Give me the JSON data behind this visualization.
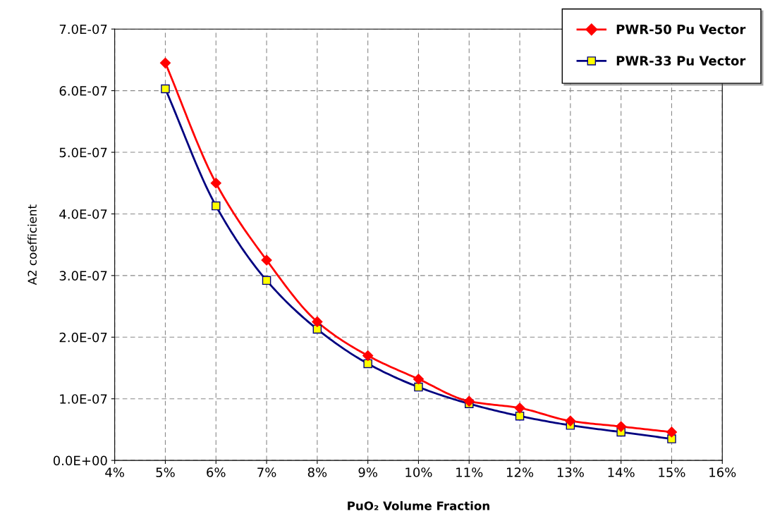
{
  "chart_data": {
    "type": "line",
    "xlabel": "PuO₂ Volume Fraction",
    "ylabel": "A2 coefficient",
    "x": [
      5,
      6,
      7,
      8,
      9,
      10,
      11,
      12,
      13,
      14,
      15
    ],
    "series": [
      {
        "name": "PWR-50 Pu Vector",
        "color": "#ff0000",
        "marker": "diamond",
        "values": [
          6.45e-07,
          4.5e-07,
          3.25e-07,
          2.25e-07,
          1.7e-07,
          1.32e-07,
          9.6e-08,
          8.5e-08,
          6.4e-08,
          5.5e-08,
          4.6e-08
        ]
      },
      {
        "name": "PWR-33 Pu Vector",
        "color": "#000080",
        "marker": "square",
        "values": [
          6.03e-07,
          4.13e-07,
          2.92e-07,
          2.13e-07,
          1.57e-07,
          1.19e-07,
          9.2e-08,
          7.2e-08,
          5.7e-08,
          4.6e-08,
          3.5e-08
        ]
      }
    ],
    "xlim": [
      4,
      16
    ],
    "xticks": [
      {
        "value": 4,
        "label": "4%"
      },
      {
        "value": 5,
        "label": "5%"
      },
      {
        "value": 6,
        "label": "6%"
      },
      {
        "value": 7,
        "label": "7%"
      },
      {
        "value": 8,
        "label": "8%"
      },
      {
        "value": 9,
        "label": "9%"
      },
      {
        "value": 10,
        "label": "10%"
      },
      {
        "value": 11,
        "label": "11%"
      },
      {
        "value": 12,
        "label": "12%"
      },
      {
        "value": 13,
        "label": "13%"
      },
      {
        "value": 14,
        "label": "14%"
      },
      {
        "value": 15,
        "label": "15%"
      },
      {
        "value": 16,
        "label": "16%"
      }
    ],
    "ylim": [
      0,
      7e-07
    ],
    "yticks": [
      {
        "value": 0,
        "label": "0.0E+00"
      },
      {
        "value": 1e-07,
        "label": "1.0E-07"
      },
      {
        "value": 2e-07,
        "label": "2.0E-07"
      },
      {
        "value": 3e-07,
        "label": "3.0E-07"
      },
      {
        "value": 4e-07,
        "label": "4.0E-07"
      },
      {
        "value": 5e-07,
        "label": "5.0E-07"
      },
      {
        "value": 6e-07,
        "label": "6.0E-07"
      },
      {
        "value": 7e-07,
        "label": "7.0E-07"
      }
    ],
    "grid": true,
    "line_style": "solid",
    "legend": "top right"
  }
}
